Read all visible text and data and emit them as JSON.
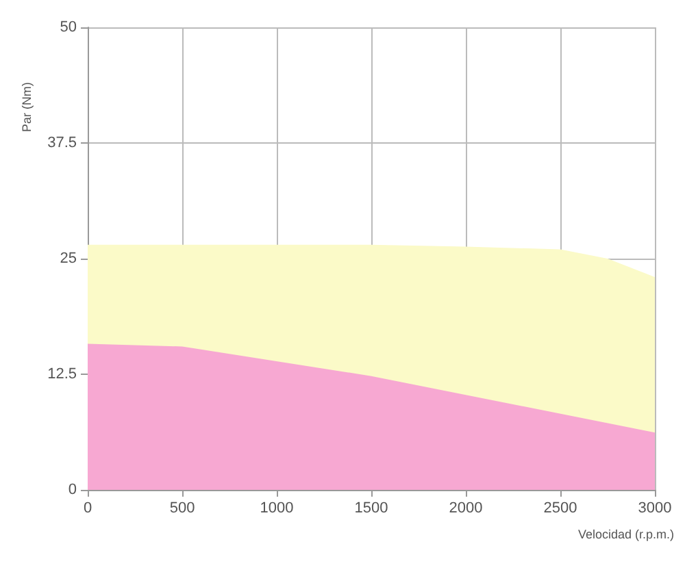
{
  "chart_data": {
    "type": "area",
    "xlabel": "Velocidad (r.p.m.)",
    "ylabel": "Par (Nm)",
    "series": [
      {
        "color": "#fbfac8",
        "x": [
          0,
          500,
          1000,
          1500,
          2000,
          2500,
          2750,
          3000
        ],
        "values": [
          26.5,
          26.5,
          26.5,
          26.5,
          26.3,
          26,
          25,
          23
        ]
      },
      {
        "color": "#f7a8d2",
        "x": [
          0,
          500,
          1500,
          3000
        ],
        "values": [
          15.8,
          15.5,
          12.3,
          6.2
        ]
      }
    ],
    "xlim": [
      0,
      3000
    ],
    "xticks": [
      0,
      500,
      1000,
      1500,
      2000,
      2500,
      3000
    ],
    "ylim": [
      0,
      50
    ],
    "yticks": [
      0,
      12.5,
      25,
      37.5,
      50
    ],
    "grid": true
  }
}
